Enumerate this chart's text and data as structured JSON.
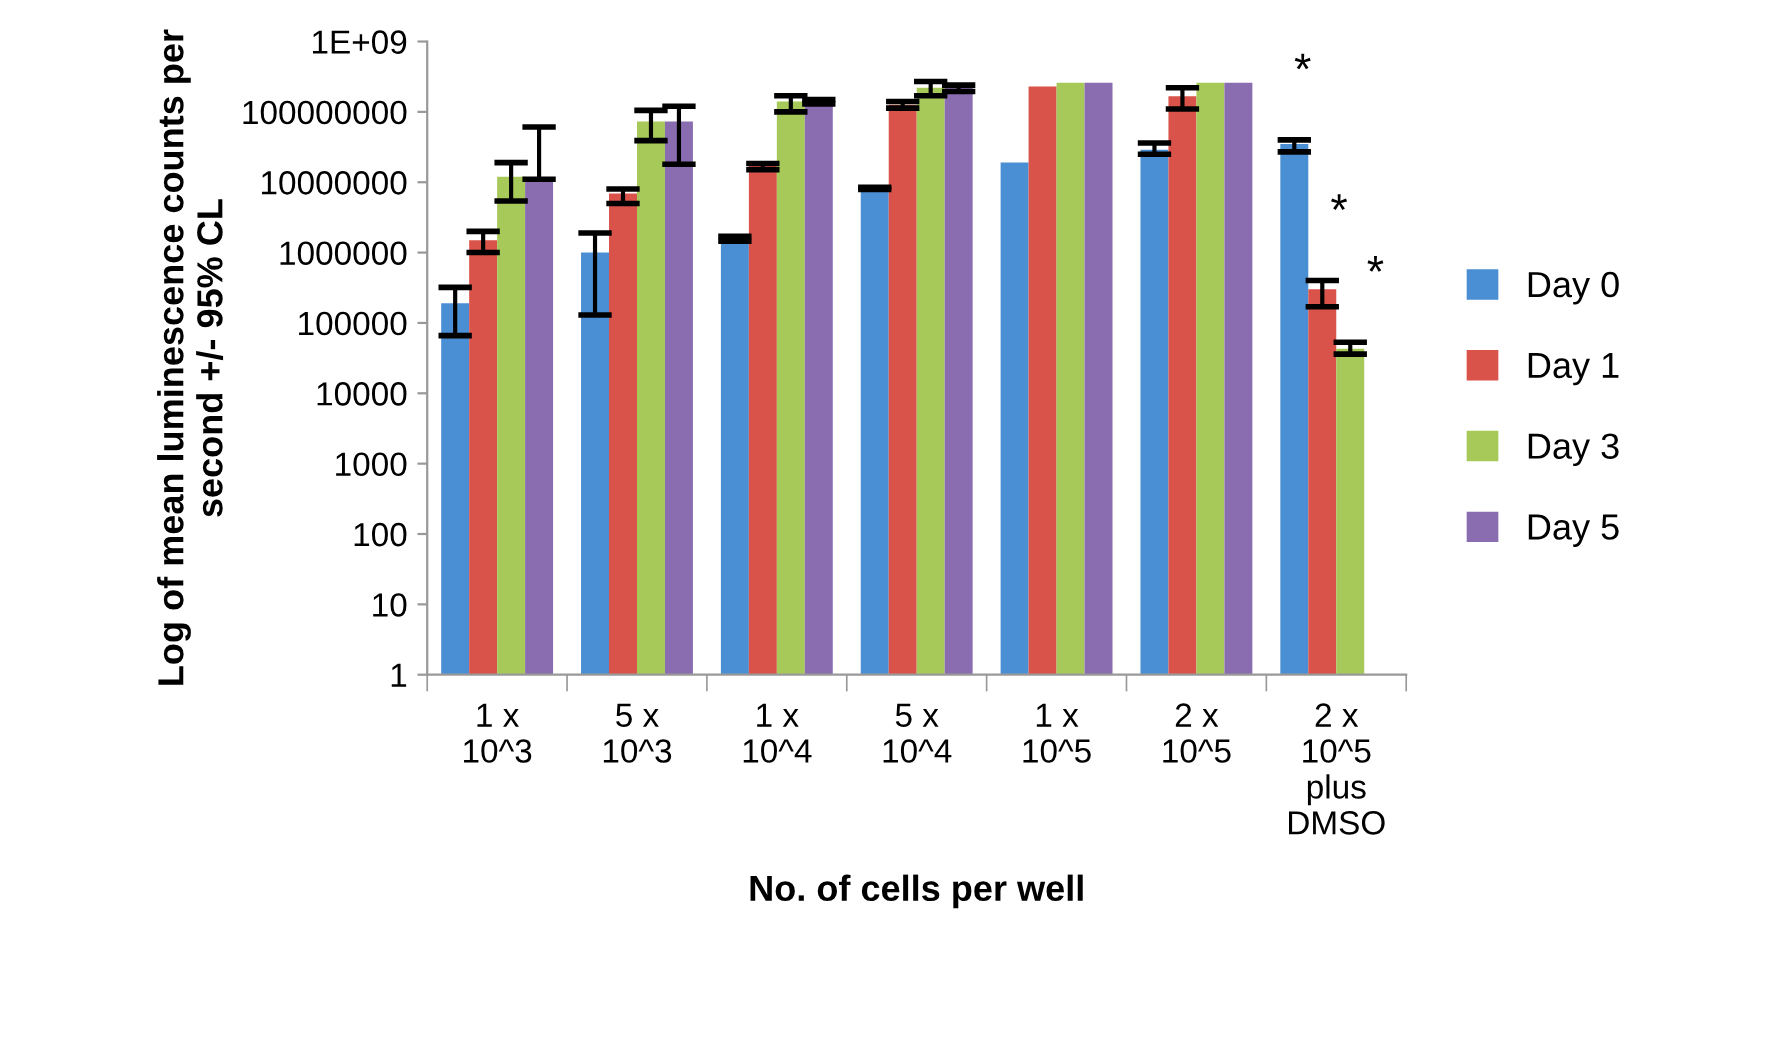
{
  "chart_data": {
    "type": "bar",
    "xlabel": "No. of cells per well",
    "ylabel": "Log of mean luminescence counts per\nsecond +/- 95% CL",
    "categories": [
      "1 x\n10^3",
      "5 x\n10^3",
      "1 x\n10^4",
      "5 x\n10^4",
      "1 x\n10^5",
      "2 x\n10^5",
      "2 x\n10^5\nplus\nDMSO"
    ],
    "log": true,
    "ylim": [
      1,
      1000000000
    ],
    "yticks": [
      1,
      10,
      100,
      1000,
      10000,
      100000,
      1000000,
      10000000,
      100000000,
      {
        "value": 1000000000,
        "label": "1E+09"
      }
    ],
    "grid": false,
    "legend": "right",
    "series": [
      {
        "name": "Day 0",
        "color": "#4a8fd4",
        "values": [
          190000,
          1000000,
          1600000,
          8200000,
          19000000,
          29000000,
          35000000
        ],
        "errors": [
          [
            66000,
            320000
          ],
          [
            130000,
            1900000
          ],
          [
            1450000,
            1700000
          ],
          [
            7900000,
            8500000
          ],
          null,
          [
            25000000,
            36000000
          ],
          [
            27000000,
            40000000
          ]
        ]
      },
      {
        "name": "Day 1",
        "color": "#d9534a",
        "values": [
          1500000,
          6900000,
          17000000,
          126000000,
          230000000,
          167000000,
          300000
        ],
        "errors": [
          [
            1000000,
            2000000
          ],
          [
            5000000,
            8000000
          ],
          [
            15000000,
            18500000
          ],
          [
            113000000,
            140000000
          ],
          null,
          [
            110000000,
            220000000
          ],
          [
            170000,
            400000
          ]
        ]
      },
      {
        "name": "Day 3",
        "color": "#a6c95a",
        "values": [
          12000000,
          73000000,
          140000000,
          220000000,
          260000000,
          260000000,
          43000
        ],
        "errors": [
          [
            5400000,
            19000000
          ],
          [
            39000000,
            105000000
          ],
          [
            100000000,
            170000000
          ],
          [
            170000000,
            270000000
          ],
          null,
          null,
          [
            36000,
            53000
          ]
        ]
      },
      {
        "name": "Day 5",
        "color": "#8a6db0",
        "values": [
          11500000,
          73000000,
          140000000,
          220000000,
          260000000,
          260000000,
          null
        ],
        "errors": [
          [
            11000000,
            61000000
          ],
          [
            18000000,
            120000000
          ],
          [
            130000000,
            150000000
          ],
          [
            195000000,
            240000000
          ],
          null,
          null,
          null
        ]
      }
    ],
    "annotations": [
      "*",
      "*",
      "*"
    ]
  }
}
